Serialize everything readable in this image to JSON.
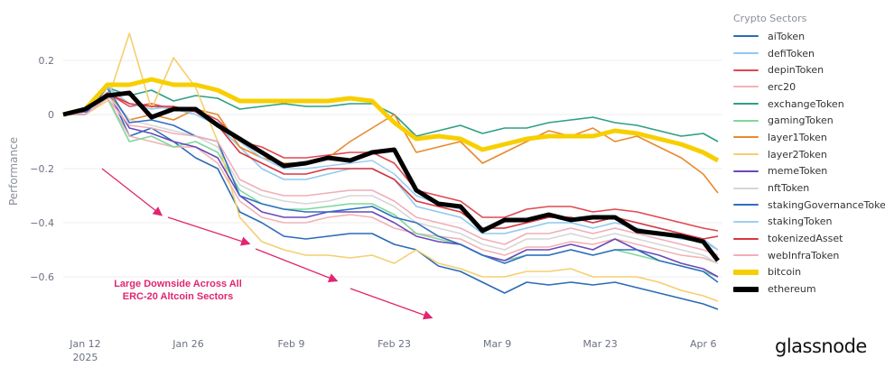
{
  "chart_data": {
    "type": "line",
    "ylabel": "Performance",
    "ylim": [
      -0.75,
      0.33
    ],
    "yticks": [
      0.2,
      0,
      -0.2,
      -0.4,
      -0.6
    ],
    "ytick_labels": [
      "0.2",
      "0",
      "−0.2",
      "−0.4",
      "−0.6"
    ],
    "xticks": [
      {
        "date": "2025-01-12",
        "label": "Jan 12",
        "sublabel": "2025"
      },
      {
        "date": "2025-01-26",
        "label": "Jan 26"
      },
      {
        "date": "2025-02-09",
        "label": "Feb 9"
      },
      {
        "date": "2025-02-23",
        "label": "Feb 23"
      },
      {
        "date": "2025-03-09",
        "label": "Mar 9"
      },
      {
        "date": "2025-03-23",
        "label": "Mar 23"
      },
      {
        "date": "2025-04-06",
        "label": "Apr 6"
      }
    ],
    "grid": true,
    "legend_title": "Crypto Sectors",
    "legend_placement": "right",
    "annotation": {
      "line1": "Large Downside Across All",
      "line2": "ERC-20 Altcoin Sectors",
      "color": "#e0266e"
    },
    "x": [
      "2025-01-09",
      "2025-01-12",
      "2025-01-15",
      "2025-01-18",
      "2025-01-21",
      "2025-01-24",
      "2025-01-27",
      "2025-01-30",
      "2025-02-02",
      "2025-02-05",
      "2025-02-08",
      "2025-02-11",
      "2025-02-14",
      "2025-02-17",
      "2025-02-20",
      "2025-02-23",
      "2025-02-26",
      "2025-03-01",
      "2025-03-04",
      "2025-03-07",
      "2025-03-10",
      "2025-03-13",
      "2025-03-16",
      "2025-03-19",
      "2025-03-22",
      "2025-03-25",
      "2025-03-28",
      "2025-03-31",
      "2025-04-03",
      "2025-04-06",
      "2025-04-08"
    ],
    "series": [
      {
        "name": "aiToken",
        "color": "#2a6bb5",
        "width": 1.6,
        "values": [
          0,
          0.02,
          0.1,
          -0.08,
          -0.05,
          -0.1,
          -0.16,
          -0.2,
          -0.36,
          -0.4,
          -0.45,
          -0.46,
          -0.45,
          -0.44,
          -0.44,
          -0.48,
          -0.5,
          -0.56,
          -0.58,
          -0.62,
          -0.66,
          -0.62,
          -0.63,
          -0.62,
          -0.63,
          -0.62,
          -0.64,
          -0.66,
          -0.68,
          -0.7,
          -0.72
        ]
      },
      {
        "name": "defiToken",
        "color": "#8ec9ef",
        "width": 1.6,
        "values": [
          0,
          0.02,
          0.1,
          0.04,
          0.03,
          0.02,
          0,
          -0.04,
          -0.12,
          -0.2,
          -0.24,
          -0.24,
          -0.22,
          -0.2,
          -0.2,
          -0.24,
          -0.34,
          -0.36,
          -0.38,
          -0.44,
          -0.44,
          -0.42,
          -0.4,
          -0.4,
          -0.42,
          -0.4,
          -0.42,
          -0.44,
          -0.46,
          -0.47,
          -0.5
        ]
      },
      {
        "name": "depinToken",
        "color": "#e0484e",
        "width": 1.6,
        "values": [
          0,
          0.02,
          0.08,
          0.03,
          0.04,
          0.02,
          0.02,
          -0.02,
          -0.1,
          -0.12,
          -0.16,
          -0.16,
          -0.15,
          -0.14,
          -0.14,
          -0.18,
          -0.28,
          -0.3,
          -0.32,
          -0.38,
          -0.38,
          -0.35,
          -0.34,
          -0.34,
          -0.36,
          -0.35,
          -0.36,
          -0.38,
          -0.4,
          -0.42,
          -0.43
        ]
      },
      {
        "name": "erc20",
        "color": "#f2b2b4",
        "width": 1.6,
        "values": [
          0,
          0,
          0.06,
          -0.08,
          -0.1,
          -0.12,
          -0.12,
          -0.18,
          -0.32,
          -0.38,
          -0.4,
          -0.4,
          -0.38,
          -0.37,
          -0.38,
          -0.42,
          -0.44,
          -0.45,
          -0.46,
          -0.5,
          -0.52,
          -0.49,
          -0.49,
          -0.47,
          -0.48,
          -0.46,
          -0.48,
          -0.5,
          -0.52,
          -0.53,
          -0.55
        ]
      },
      {
        "name": "exchangeToken",
        "color": "#2e9e84",
        "width": 1.6,
        "values": [
          0,
          0.02,
          0.1,
          0.07,
          0.09,
          0.05,
          0.07,
          0.06,
          0.02,
          0.03,
          0.04,
          0.03,
          0.03,
          0.04,
          0.04,
          0,
          -0.08,
          -0.06,
          -0.04,
          -0.07,
          -0.05,
          -0.05,
          -0.03,
          -0.02,
          -0.01,
          -0.03,
          -0.04,
          -0.06,
          -0.08,
          -0.07,
          -0.1
        ]
      },
      {
        "name": "gamingToken",
        "color": "#7fd89a",
        "width": 1.6,
        "values": [
          0,
          0,
          0.06,
          -0.1,
          -0.08,
          -0.12,
          -0.1,
          -0.14,
          -0.28,
          -0.33,
          -0.35,
          -0.35,
          -0.34,
          -0.33,
          -0.33,
          -0.37,
          -0.44,
          -0.46,
          -0.48,
          -0.52,
          -0.54,
          -0.52,
          -0.52,
          -0.5,
          -0.52,
          -0.5,
          -0.52,
          -0.54,
          -0.56,
          -0.58,
          -0.6
        ]
      },
      {
        "name": "layer1Token",
        "color": "#e8892c",
        "width": 1.6,
        "values": [
          0,
          0.01,
          0.08,
          -0.02,
          0,
          -0.02,
          0.02,
          0,
          -0.12,
          -0.16,
          -0.18,
          -0.18,
          -0.16,
          -0.1,
          -0.05,
          0,
          -0.14,
          -0.12,
          -0.1,
          -0.18,
          -0.14,
          -0.1,
          -0.06,
          -0.08,
          -0.05,
          -0.1,
          -0.08,
          -0.12,
          -0.16,
          -0.22,
          -0.29
        ]
      },
      {
        "name": "layer2Token",
        "color": "#f5cf6e",
        "width": 1.6,
        "values": [
          0,
          0,
          0.05,
          0.3,
          0.02,
          0.21,
          0.1,
          -0.1,
          -0.38,
          -0.47,
          -0.5,
          -0.52,
          -0.52,
          -0.53,
          -0.52,
          -0.55,
          -0.5,
          -0.55,
          -0.57,
          -0.6,
          -0.6,
          -0.58,
          -0.58,
          -0.57,
          -0.6,
          -0.6,
          -0.6,
          -0.62,
          -0.65,
          -0.67,
          -0.69
        ]
      },
      {
        "name": "memeToken",
        "color": "#6a48b8",
        "width": 1.6,
        "values": [
          0,
          0.01,
          0.08,
          -0.05,
          -0.07,
          -0.1,
          -0.12,
          -0.16,
          -0.3,
          -0.36,
          -0.38,
          -0.38,
          -0.36,
          -0.36,
          -0.36,
          -0.4,
          -0.45,
          -0.47,
          -0.48,
          -0.52,
          -0.54,
          -0.5,
          -0.5,
          -0.48,
          -0.5,
          -0.46,
          -0.5,
          -0.52,
          -0.55,
          -0.57,
          -0.6
        ]
      },
      {
        "name": "nftToken",
        "color": "#d6d6d6",
        "width": 1.6,
        "values": [
          0,
          0,
          0.07,
          -0.02,
          -0.04,
          -0.06,
          -0.08,
          -0.12,
          -0.26,
          -0.3,
          -0.32,
          -0.33,
          -0.32,
          -0.3,
          -0.3,
          -0.34,
          -0.4,
          -0.42,
          -0.44,
          -0.48,
          -0.5,
          -0.46,
          -0.46,
          -0.44,
          -0.46,
          -0.44,
          -0.46,
          -0.48,
          -0.5,
          -0.52,
          -0.55
        ]
      },
      {
        "name": "stakingGovernanceToken",
        "color": "#2f6fc0",
        "width": 1.6,
        "values": [
          0,
          0,
          0.1,
          -0.03,
          -0.02,
          -0.04,
          -0.08,
          -0.1,
          -0.3,
          -0.33,
          -0.35,
          -0.36,
          -0.36,
          -0.35,
          -0.34,
          -0.38,
          -0.4,
          -0.45,
          -0.48,
          -0.52,
          -0.55,
          -0.52,
          -0.52,
          -0.5,
          -0.52,
          -0.5,
          -0.5,
          -0.54,
          -0.56,
          -0.58,
          -0.62
        ]
      },
      {
        "name": "stakingToken",
        "color": "#9fcdf0",
        "width": 1.6,
        "values": [
          0,
          0.02,
          0.1,
          0.04,
          0.02,
          0.03,
          0,
          -0.03,
          -0.1,
          -0.16,
          -0.2,
          -0.2,
          -0.19,
          -0.18,
          -0.17,
          -0.22,
          -0.3,
          -0.33,
          -0.35,
          -0.42,
          -0.42,
          -0.4,
          -0.38,
          -0.38,
          -0.4,
          -0.38,
          -0.4,
          -0.42,
          -0.44,
          -0.46,
          -0.5
        ]
      },
      {
        "name": "tokenizedAsset",
        "color": "#d9363e",
        "width": 1.6,
        "values": [
          0,
          0.02,
          0.08,
          0.04,
          0.03,
          0.03,
          0.01,
          -0.04,
          -0.14,
          -0.18,
          -0.22,
          -0.22,
          -0.2,
          -0.2,
          -0.2,
          -0.24,
          -0.32,
          -0.34,
          -0.36,
          -0.42,
          -0.42,
          -0.4,
          -0.38,
          -0.38,
          -0.4,
          -0.38,
          -0.4,
          -0.42,
          -0.44,
          -0.46,
          -0.45
        ]
      },
      {
        "name": "webInfraToken",
        "color": "#f0aeb8",
        "width": 1.6,
        "values": [
          0,
          0,
          0.06,
          -0.04,
          -0.05,
          -0.07,
          -0.08,
          -0.1,
          -0.24,
          -0.28,
          -0.3,
          -0.3,
          -0.29,
          -0.28,
          -0.28,
          -0.32,
          -0.38,
          -0.4,
          -0.42,
          -0.46,
          -0.48,
          -0.44,
          -0.44,
          -0.42,
          -0.44,
          -0.42,
          -0.44,
          -0.46,
          -0.48,
          -0.5,
          -0.52
        ]
      },
      {
        "name": "bitcoin",
        "color": "#f7cf00",
        "width": 5,
        "values": [
          0,
          0.02,
          0.11,
          0.11,
          0.13,
          0.11,
          0.11,
          0.09,
          0.05,
          0.05,
          0.05,
          0.05,
          0.05,
          0.06,
          0.05,
          -0.03,
          -0.09,
          -0.08,
          -0.09,
          -0.13,
          -0.11,
          -0.09,
          -0.08,
          -0.08,
          -0.08,
          -0.06,
          -0.07,
          -0.09,
          -0.11,
          -0.14,
          -0.17
        ]
      },
      {
        "name": "ethereum",
        "color": "#000000",
        "width": 5,
        "values": [
          0,
          0.02,
          0.07,
          0.08,
          -0.01,
          0.02,
          0.02,
          -0.04,
          -0.09,
          -0.14,
          -0.19,
          -0.18,
          -0.16,
          -0.17,
          -0.14,
          -0.13,
          -0.28,
          -0.33,
          -0.34,
          -0.43,
          -0.39,
          -0.39,
          -0.37,
          -0.39,
          -0.38,
          -0.38,
          -0.43,
          -0.44,
          -0.45,
          -0.47,
          -0.54
        ]
      }
    ]
  },
  "brand": {
    "logo": "glassnode"
  }
}
